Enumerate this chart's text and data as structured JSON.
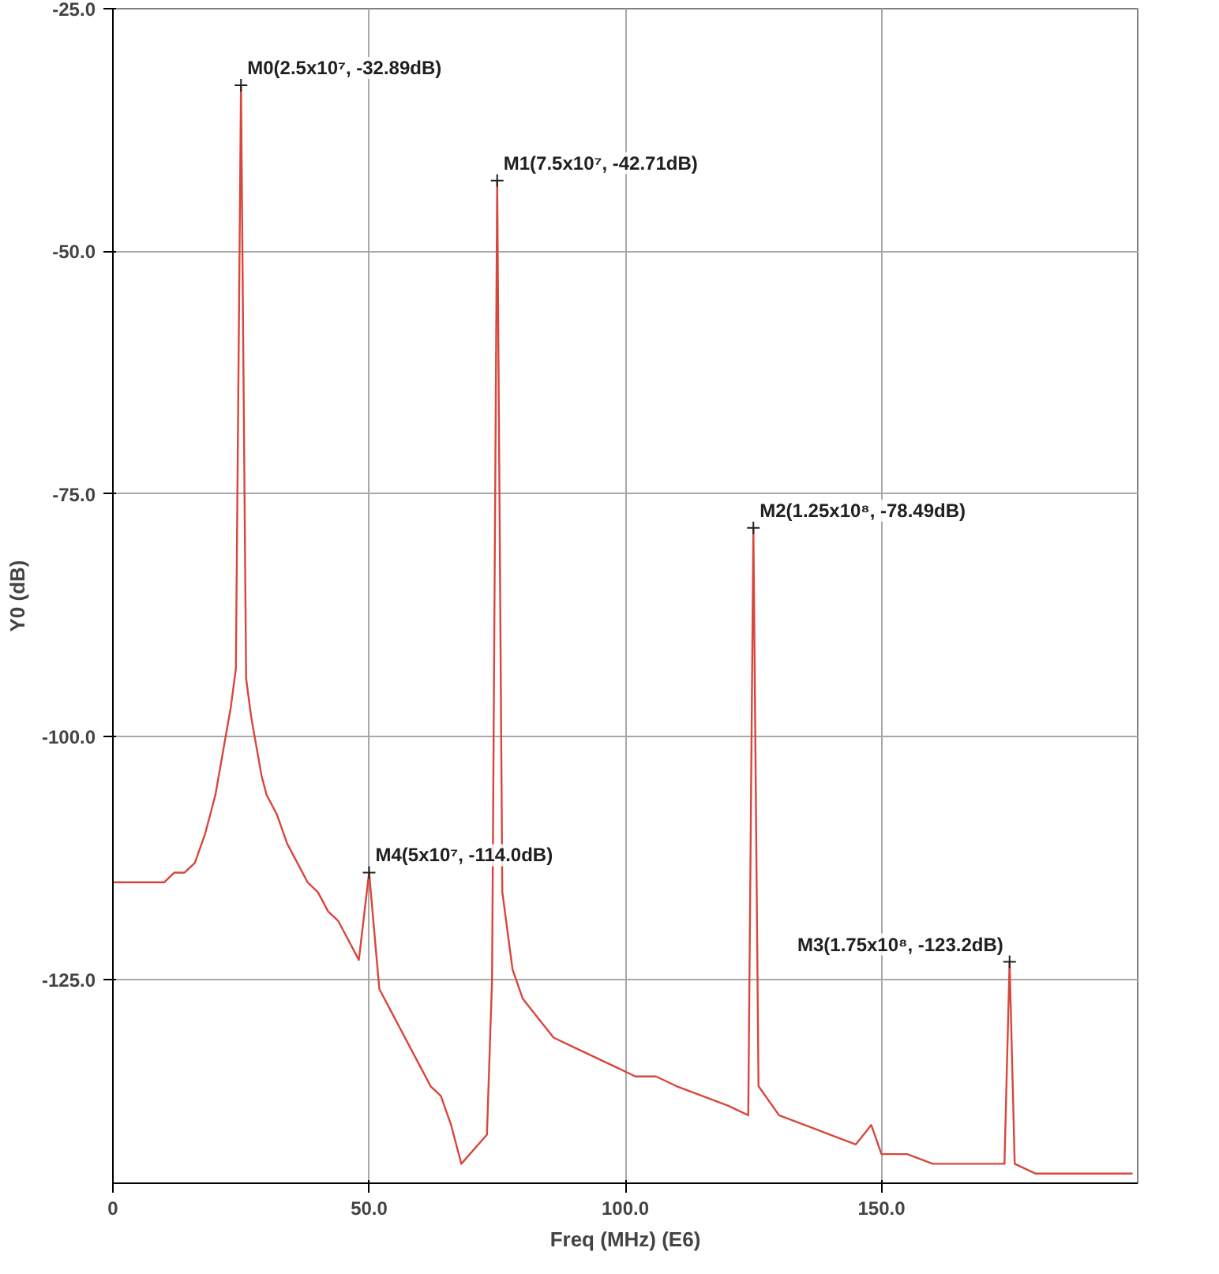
{
  "chart_data": {
    "type": "line",
    "xlabel": "Freq (MHz) (E6)",
    "ylabel": "Y0 (dB)",
    "x": [
      0,
      2,
      4,
      6,
      8,
      10,
      12,
      14,
      16,
      18,
      19,
      20,
      21,
      22,
      23,
      24,
      25,
      26,
      27,
      28,
      29,
      30,
      32,
      34,
      36,
      38,
      40,
      42,
      44,
      46,
      48,
      50,
      52,
      54,
      56,
      58,
      60,
      62,
      64,
      66,
      67,
      68,
      73,
      74,
      75,
      76,
      77,
      78,
      80,
      83,
      86,
      90,
      94,
      98,
      102,
      106,
      110,
      115,
      120,
      124,
      125,
      126,
      130,
      135,
      140,
      145,
      148,
      150,
      155,
      160,
      165,
      170,
      174,
      175,
      176,
      180,
      185,
      190,
      195,
      199
    ],
    "series": [
      {
        "color": "#d9463b",
        "values": [
          -115,
          -115,
          -115,
          -115,
          -115,
          -115,
          -114,
          -114,
          -113,
          -110,
          -108,
          -106,
          -103,
          -100,
          -97,
          -93,
          -32.89,
          -94,
          -98,
          -101,
          -104,
          -106,
          -108,
          -111,
          -113,
          -115,
          -116,
          -118,
          -119,
          -121,
          -123,
          -114,
          -126,
          -128,
          -130,
          -132,
          -134,
          -136,
          -137,
          -140,
          -142,
          -144,
          -141,
          -125,
          -42.71,
          -116,
          -120,
          -124,
          -127,
          -129,
          -131,
          -132,
          -133,
          -134,
          -135,
          -135,
          -136,
          -137,
          -138,
          -139,
          -78.49,
          -136,
          -139,
          -140,
          -141,
          -142,
          -140,
          -143,
          -143,
          -144,
          -144,
          -144,
          -144,
          -123.2,
          -144,
          -145,
          -145,
          -145,
          -145,
          -145
        ]
      }
    ],
    "xlim": [
      0,
      200
    ],
    "ylim": [
      -146,
      -25
    ],
    "xticks": [
      0,
      {
        "value": 50,
        "label": "50.0"
      },
      {
        "value": 100,
        "label": "100.0"
      },
      {
        "value": 150,
        "label": "150.0"
      }
    ],
    "yticks": [
      {
        "value": -25,
        "label": "-25.0"
      },
      {
        "value": -50,
        "label": "-50.0"
      },
      {
        "value": -75,
        "label": "-75.0"
      },
      {
        "value": -100,
        "label": "-100.0"
      },
      {
        "value": -125,
        "label": "-125.0"
      }
    ],
    "grid": true,
    "annotations": [
      {
        "text": "M0(2.5x10⁷, -32.89dB)",
        "x": 25,
        "y": -32.89
      },
      {
        "text": "M1(7.5x10⁷, -42.71dB)",
        "x": 75,
        "y": -42.71
      },
      {
        "text": "M2(1.25x10⁸, -78.49dB)",
        "x": 125,
        "y": -78.49
      },
      {
        "text": "M4(5x10⁷, -114.0dB)",
        "x": 50,
        "y": -114.0
      },
      {
        "text": "M3(1.75x10⁸, -123.2dB)",
        "x": 175,
        "y": -123.2
      }
    ]
  }
}
